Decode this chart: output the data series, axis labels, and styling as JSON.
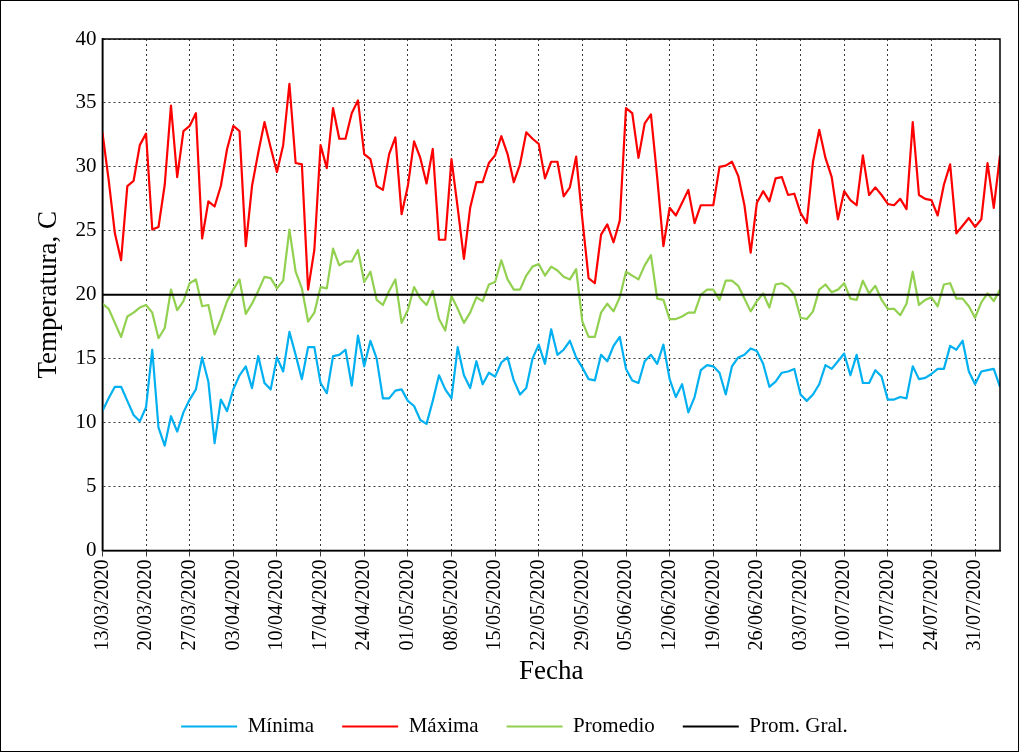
{
  "chart_data": {
    "type": "line",
    "xlabel": "Fecha",
    "ylabel": "Temperatura, C",
    "x": [
      "2020-03-13",
      "2020-03-14",
      "2020-03-15",
      "2020-03-16",
      "2020-03-17",
      "2020-03-18",
      "2020-03-19",
      "2020-03-20",
      "2020-03-21",
      "2020-03-22",
      "2020-03-23",
      "2020-03-24",
      "2020-03-25",
      "2020-03-26",
      "2020-03-27",
      "2020-03-28",
      "2020-03-29",
      "2020-03-30",
      "2020-03-31",
      "2020-04-01",
      "2020-04-02",
      "2020-04-03",
      "2020-04-04",
      "2020-04-05",
      "2020-04-06",
      "2020-04-07",
      "2020-04-08",
      "2020-04-09",
      "2020-04-10",
      "2020-04-11",
      "2020-04-12",
      "2020-04-13",
      "2020-04-14",
      "2020-04-15",
      "2020-04-16",
      "2020-04-17",
      "2020-04-18",
      "2020-04-19",
      "2020-04-20",
      "2020-04-21",
      "2020-04-22",
      "2020-04-23",
      "2020-04-24",
      "2020-04-25",
      "2020-04-26",
      "2020-04-27",
      "2020-04-28",
      "2020-04-29",
      "2020-04-30",
      "2020-05-01",
      "2020-05-02",
      "2020-05-03",
      "2020-05-04",
      "2020-05-05",
      "2020-05-06",
      "2020-05-07",
      "2020-05-08",
      "2020-05-09",
      "2020-05-10",
      "2020-05-11",
      "2020-05-12",
      "2020-05-13",
      "2020-05-14",
      "2020-05-15",
      "2020-05-16",
      "2020-05-17",
      "2020-05-18",
      "2020-05-19",
      "2020-05-20",
      "2020-05-21",
      "2020-05-22",
      "2020-05-23",
      "2020-05-24",
      "2020-05-25",
      "2020-05-26",
      "2020-05-27",
      "2020-05-28",
      "2020-05-29",
      "2020-05-30",
      "2020-05-31",
      "2020-06-01",
      "2020-06-02",
      "2020-06-03",
      "2020-06-04",
      "2020-06-05",
      "2020-06-06",
      "2020-06-07",
      "2020-06-08",
      "2020-06-09",
      "2020-06-10",
      "2020-06-11",
      "2020-06-12",
      "2020-06-13",
      "2020-06-14",
      "2020-06-15",
      "2020-06-16",
      "2020-06-17",
      "2020-06-18",
      "2020-06-19",
      "2020-06-20",
      "2020-06-21",
      "2020-06-22",
      "2020-06-23",
      "2020-06-24",
      "2020-06-25",
      "2020-06-26",
      "2020-06-27",
      "2020-06-28",
      "2020-06-29",
      "2020-06-30",
      "2020-07-01",
      "2020-07-02",
      "2020-07-03",
      "2020-07-04",
      "2020-07-05",
      "2020-07-06",
      "2020-07-07",
      "2020-07-08",
      "2020-07-09",
      "2020-07-10",
      "2020-07-11",
      "2020-07-12",
      "2020-07-13",
      "2020-07-14",
      "2020-07-15",
      "2020-07-16",
      "2020-07-17",
      "2020-07-18",
      "2020-07-19",
      "2020-07-20",
      "2020-07-21",
      "2020-07-22",
      "2020-07-23",
      "2020-07-24",
      "2020-07-25",
      "2020-07-26",
      "2020-07-27",
      "2020-07-28",
      "2020-07-29",
      "2020-07-30",
      "2020-07-31",
      "2020-08-01",
      "2020-08-02",
      "2020-08-03",
      "2020-08-04"
    ],
    "series": [
      {
        "name": "Mínima",
        "color": "#00b0f0",
        "values": [
          10.9,
          11.9,
          12.8,
          12.8,
          11.7,
          10.6,
          10.1,
          11.2,
          15.7,
          9.6,
          8.2,
          10.5,
          9.3,
          10.8,
          11.8,
          12.6,
          15.1,
          13.2,
          8.4,
          11.8,
          10.9,
          12.6,
          13.7,
          14.4,
          12.7,
          15.2,
          13.1,
          12.6,
          15.1,
          14.0,
          17.1,
          15.3,
          13.4,
          15.9,
          15.9,
          13.1,
          12.3,
          15.2,
          15.3,
          15.7,
          12.9,
          16.8,
          14.4,
          16.4,
          15.0,
          11.9,
          11.9,
          12.5,
          12.6,
          11.7,
          11.3,
          10.2,
          9.9,
          11.7,
          13.7,
          12.6,
          11.9,
          15.9,
          13.7,
          12.7,
          14.8,
          13.0,
          13.9,
          13.6,
          14.7,
          15.1,
          13.3,
          12.2,
          12.7,
          15.0,
          16.1,
          14.6,
          17.3,
          15.3,
          15.7,
          16.4,
          15.1,
          14.3,
          13.4,
          13.3,
          15.3,
          14.8,
          16.0,
          16.7,
          14.2,
          13.3,
          13.1,
          14.8,
          15.3,
          14.6,
          16.1,
          13.4,
          12.0,
          13.0,
          10.8,
          12.0,
          14.1,
          14.5,
          14.4,
          13.9,
          12.2,
          14.4,
          15.1,
          15.3,
          15.8,
          15.6,
          14.6,
          12.8,
          13.2,
          13.9,
          14.0,
          14.2,
          12.2,
          11.7,
          12.2,
          13.0,
          14.5,
          14.2,
          14.8,
          15.4,
          13.7,
          15.3,
          13.1,
          13.1,
          14.1,
          13.6,
          11.8,
          11.8,
          12.0,
          11.9,
          14.4,
          13.4,
          13.5,
          13.8,
          14.2,
          14.2,
          16.0,
          15.7,
          16.4,
          14.0,
          13.0,
          14.0,
          14.1,
          14.2,
          12.8
        ]
      },
      {
        "name": "Máxima",
        "color": "#ff0000",
        "values": [
          32.7,
          29.0,
          24.8,
          22.7,
          28.5,
          28.9,
          31.7,
          32.6,
          25.1,
          25.3,
          28.6,
          34.8,
          29.2,
          32.8,
          33.2,
          34.2,
          24.4,
          27.3,
          26.9,
          28.5,
          31.4,
          33.2,
          32.8,
          23.8,
          28.5,
          31.1,
          33.5,
          31.5,
          29.6,
          31.7,
          36.5,
          30.3,
          30.2,
          20.4,
          23.5,
          31.7,
          29.9,
          34.6,
          32.2,
          32.2,
          34.2,
          35.2,
          31.0,
          30.6,
          28.5,
          28.2,
          31.0,
          32.3,
          26.3,
          28.5,
          32.0,
          30.7,
          28.7,
          31.4,
          24.3,
          24.3,
          30.6,
          26.8,
          22.8,
          26.8,
          28.8,
          28.8,
          30.3,
          30.9,
          32.4,
          31.0,
          28.8,
          30.2,
          32.7,
          32.2,
          31.8,
          29.1,
          30.4,
          30.4,
          27.7,
          28.4,
          30.8,
          25.9,
          21.3,
          20.9,
          24.7,
          25.5,
          24.1,
          25.8,
          34.6,
          34.2,
          30.7,
          33.4,
          34.1,
          29.2,
          23.8,
          26.8,
          26.2,
          27.2,
          28.2,
          25.6,
          27.0,
          27.0,
          27.0,
          30.0,
          30.1,
          30.4,
          29.3,
          27.0,
          23.3,
          27.2,
          28.1,
          27.3,
          29.1,
          29.2,
          27.8,
          27.9,
          26.4,
          25.6,
          30.4,
          32.9,
          30.7,
          29.2,
          25.9,
          28.1,
          27.4,
          27.0,
          30.9,
          27.8,
          28.4,
          27.8,
          27.1,
          27.0,
          27.5,
          26.7,
          33.5,
          27.8,
          27.5,
          27.4,
          26.2,
          28.6,
          30.2,
          24.8,
          25.4,
          26.0,
          25.3,
          25.9,
          30.3,
          26.8,
          30.9
        ]
      },
      {
        "name": "Promedio",
        "color": "#92d050",
        "values": [
          19.3,
          18.9,
          17.8,
          16.7,
          18.3,
          18.6,
          19.0,
          19.2,
          18.6,
          16.6,
          17.4,
          20.4,
          18.8,
          19.5,
          20.9,
          21.2,
          19.1,
          19.2,
          16.9,
          18.1,
          19.5,
          20.4,
          21.2,
          18.5,
          19.3,
          20.3,
          21.4,
          21.3,
          20.5,
          21.1,
          25.1,
          21.8,
          20.5,
          17.9,
          18.6,
          20.6,
          20.5,
          23.6,
          22.3,
          22.6,
          22.6,
          23.5,
          21.0,
          21.8,
          19.6,
          19.2,
          20.3,
          21.2,
          17.8,
          18.8,
          20.6,
          19.7,
          19.2,
          20.3,
          18.1,
          17.2,
          19.9,
          18.9,
          17.8,
          18.6,
          19.8,
          19.5,
          20.8,
          21.0,
          22.7,
          21.2,
          20.4,
          20.4,
          21.5,
          22.2,
          22.4,
          21.5,
          22.2,
          21.9,
          21.4,
          21.2,
          22.0,
          17.9,
          16.7,
          16.7,
          18.6,
          19.3,
          18.7,
          19.8,
          21.8,
          21.5,
          21.2,
          22.3,
          23.1,
          19.7,
          19.6,
          18.1,
          18.1,
          18.3,
          18.6,
          18.6,
          20.0,
          20.4,
          20.4,
          19.6,
          21.1,
          21.1,
          20.7,
          19.7,
          18.7,
          19.5,
          20.1,
          19.0,
          20.8,
          20.9,
          20.6,
          20.0,
          18.2,
          18.1,
          18.7,
          20.4,
          20.8,
          20.2,
          20.4,
          20.9,
          19.7,
          19.6,
          21.1,
          20.1,
          20.7,
          19.6,
          18.9,
          18.9,
          18.4,
          19.3,
          21.8,
          19.2,
          19.6,
          19.8,
          19.1,
          20.8,
          20.9,
          19.7,
          19.7,
          19.1,
          18.2,
          19.4,
          20.1,
          19.5,
          20.4
        ]
      },
      {
        "name": "Prom. Gral.",
        "color": "#000000",
        "x": [
          "2020-03-13",
          "2020-08-04"
        ],
        "values": [
          20,
          20
        ]
      }
    ],
    "xlim": [
      "2020-03-13",
      "2020-08-04"
    ],
    "xticks": [
      {
        "value": "2020-03-13",
        "label": "13/03/2020"
      },
      {
        "value": "2020-03-20",
        "label": "20/03/2020"
      },
      {
        "value": "2020-03-27",
        "label": "27/03/2020"
      },
      {
        "value": "2020-04-03",
        "label": "03/04/2020"
      },
      {
        "value": "2020-04-10",
        "label": "10/04/2020"
      },
      {
        "value": "2020-04-17",
        "label": "17/04/2020"
      },
      {
        "value": "2020-04-24",
        "label": "24/04/2020"
      },
      {
        "value": "2020-05-01",
        "label": "01/05/2020"
      },
      {
        "value": "2020-05-08",
        "label": "08/05/2020"
      },
      {
        "value": "2020-05-15",
        "label": "15/05/2020"
      },
      {
        "value": "2020-05-22",
        "label": "22/05/2020"
      },
      {
        "value": "2020-05-29",
        "label": "29/05/2020"
      },
      {
        "value": "2020-06-05",
        "label": "05/06/2020"
      },
      {
        "value": "2020-06-12",
        "label": "12/06/2020"
      },
      {
        "value": "2020-06-19",
        "label": "19/06/2020"
      },
      {
        "value": "2020-06-26",
        "label": "26/06/2020"
      },
      {
        "value": "2020-07-03",
        "label": "03/07/2020"
      },
      {
        "value": "2020-07-10",
        "label": "10/07/2020"
      },
      {
        "value": "2020-07-17",
        "label": "17/07/2020"
      },
      {
        "value": "2020-07-24",
        "label": "24/07/2020"
      },
      {
        "value": "2020-07-31",
        "label": "31/07/2020"
      }
    ],
    "ylim": [
      0,
      40
    ],
    "yticks": [
      0,
      5,
      10,
      15,
      20,
      25,
      30,
      35,
      40
    ],
    "grid": true,
    "legend": "bottom",
    "marker": "none",
    "line_style": "solid"
  }
}
